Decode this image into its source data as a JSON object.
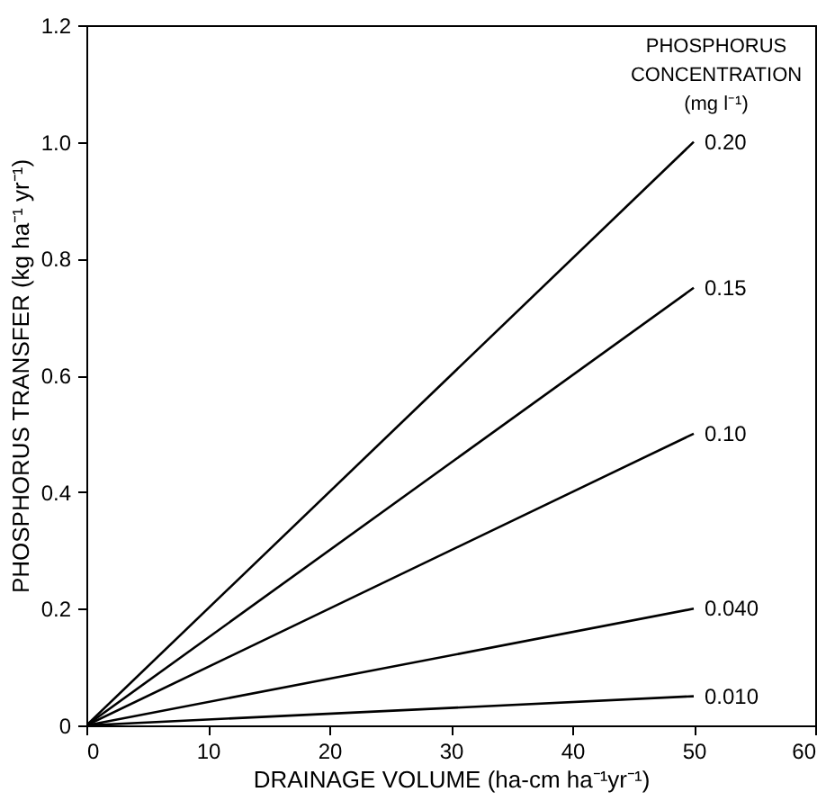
{
  "chart_data": {
    "type": "line",
    "xlabel": "DRAINAGE VOLUME (ha-cm ha⁻¹yr⁻¹)",
    "ylabel": "PHOSPHORUS TRANSFER (kg ha⁻¹ yr⁻¹)",
    "legend_title": "PHOSPHORUS CONCENTRATION (mg l⁻¹)",
    "x": [
      0,
      50
    ],
    "series": [
      {
        "name": "0.20",
        "color": "#000000",
        "values": [
          0,
          1.0
        ]
      },
      {
        "name": "0.15",
        "color": "#000000",
        "values": [
          0,
          0.75
        ]
      },
      {
        "name": "0.10",
        "color": "#000000",
        "values": [
          0,
          0.5
        ]
      },
      {
        "name": "0.040",
        "color": "#000000",
        "values": [
          0,
          0.2
        ]
      },
      {
        "name": "0.010",
        "color": "#000000",
        "values": [
          0,
          0.05
        ]
      }
    ],
    "xlim": [
      0,
      60
    ],
    "xticks": [
      0,
      10,
      20,
      30,
      40,
      50,
      60
    ],
    "ylim": [
      0,
      1.2
    ],
    "yticks": [
      {
        "value": 0,
        "label": "0"
      },
      0.2,
      0.4,
      0.6,
      0.8,
      {
        "value": 1,
        "label": "1.0"
      },
      {
        "value": 1.2,
        "label": "1.2"
      }
    ],
    "grid": false,
    "legend": false,
    "marker": "none",
    "line_style": "solid"
  }
}
